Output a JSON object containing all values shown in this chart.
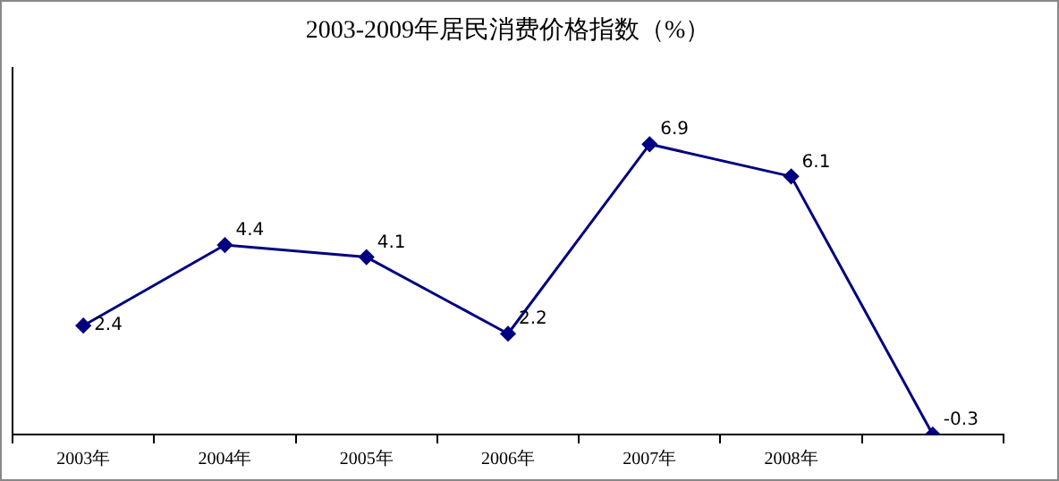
{
  "chart_data": {
    "type": "line",
    "title": "2003-2009年居民消费价格指数（%）",
    "categories": [
      "2003年",
      "2004年",
      "2005年",
      "2006年",
      "2007年",
      "2008年",
      null
    ],
    "series": [
      {
        "color": "#000080",
        "values": [
          2.4,
          4.4,
          4.1,
          2.2,
          6.9,
          6.1,
          -0.3
        ]
      }
    ],
    "ylim": [
      -0.3,
      8.8
    ],
    "data_labels": true,
    "marker": "diamond",
    "line_style": "solid",
    "legend": false,
    "grid": false
  }
}
